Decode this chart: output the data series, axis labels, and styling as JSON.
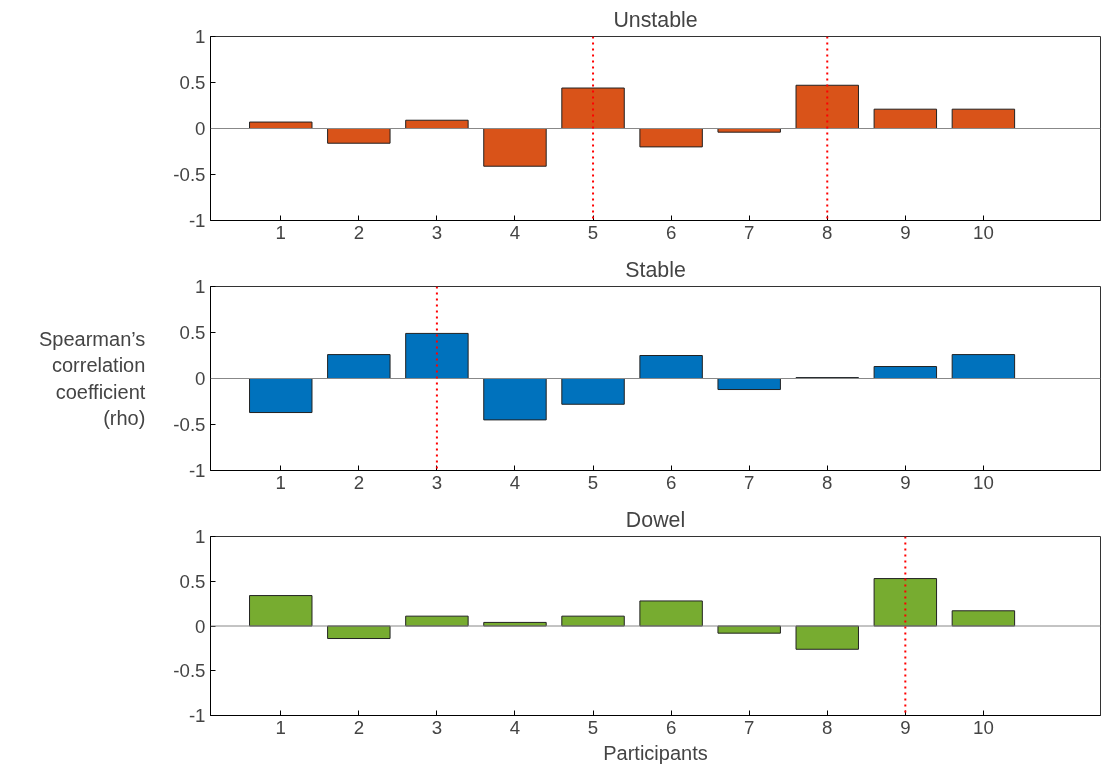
{
  "chart_data": [
    {
      "type": "bar",
      "title": "Unstable",
      "x": [
        1,
        2,
        3,
        4,
        5,
        6,
        7,
        8,
        9,
        10
      ],
      "xlim": [
        0.1,
        11.5
      ],
      "xticks": [
        1,
        2,
        3,
        4,
        5,
        6,
        7,
        8,
        9,
        10
      ],
      "ylim": [
        -1,
        1
      ],
      "yticks": [
        -1,
        -0.5,
        0,
        0.5,
        1
      ],
      "grid": false,
      "series": [
        {
          "color": "#d95319",
          "values": [
            0.07,
            -0.16,
            0.09,
            -0.41,
            0.44,
            -0.2,
            -0.04,
            0.47,
            0.21,
            0.21
          ]
        }
      ],
      "ref_lines": [
        {
          "axis": "x",
          "value": 5,
          "color": "#ff0000",
          "line_style": "dotted"
        },
        {
          "axis": "x",
          "value": 8,
          "color": "#ff0000",
          "line_style": "dotted"
        }
      ]
    },
    {
      "type": "bar",
      "title": "Stable",
      "ylabel": "Spearman’s correlation coefficient (rho)",
      "x": [
        1,
        2,
        3,
        4,
        5,
        6,
        7,
        8,
        9,
        10
      ],
      "xlim": [
        0.1,
        11.5
      ],
      "xticks": [
        1,
        2,
        3,
        4,
        5,
        6,
        7,
        8,
        9,
        10
      ],
      "ylim": [
        -1,
        1
      ],
      "yticks": [
        -1,
        -0.5,
        0,
        0.5,
        1
      ],
      "grid": false,
      "series": [
        {
          "color": "#0072bd",
          "values": [
            -0.37,
            0.26,
            0.49,
            -0.45,
            -0.28,
            0.25,
            -0.12,
            0.01,
            0.13,
            0.26
          ]
        }
      ],
      "ref_lines": [
        {
          "axis": "x",
          "value": 3,
          "color": "#ff0000",
          "line_style": "dotted"
        }
      ]
    },
    {
      "type": "bar",
      "title": "Dowel",
      "xlabel": "Participants",
      "x": [
        1,
        2,
        3,
        4,
        5,
        6,
        7,
        8,
        9,
        10
      ],
      "xlim": [
        0.1,
        11.5
      ],
      "xticks": [
        1,
        2,
        3,
        4,
        5,
        6,
        7,
        8,
        9,
        10
      ],
      "ylim": [
        -1,
        1
      ],
      "yticks": [
        -1,
        -0.5,
        0,
        0.5,
        1
      ],
      "grid": false,
      "series": [
        {
          "color": "#77ac30",
          "values": [
            0.34,
            -0.14,
            0.11,
            0.04,
            0.11,
            0.28,
            -0.08,
            -0.26,
            0.53,
            0.17
          ]
        }
      ],
      "ref_lines": [
        {
          "axis": "x",
          "value": 9,
          "color": "#ff0000",
          "line_style": "dotted"
        }
      ]
    }
  ]
}
